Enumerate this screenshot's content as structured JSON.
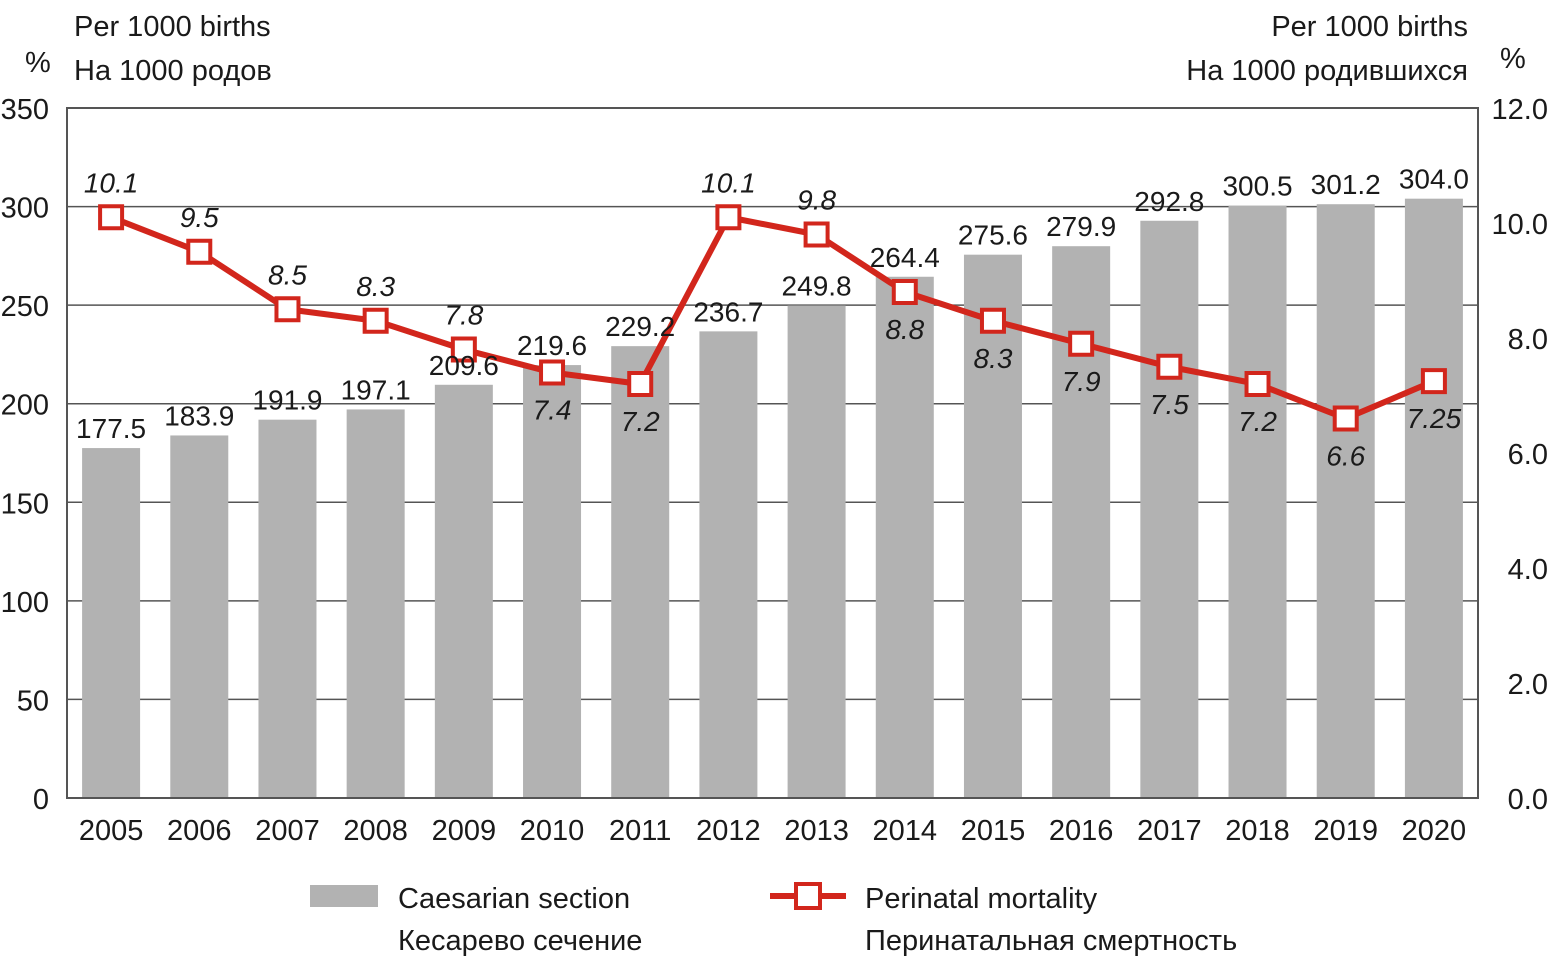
{
  "chart_data": {
    "type": "bar+line",
    "categories": [
      "2005",
      "2006",
      "2007",
      "2008",
      "2009",
      "2010",
      "2011",
      "2012",
      "2013",
      "2014",
      "2015",
      "2016",
      "2017",
      "2018",
      "2019",
      "2020"
    ],
    "series": [
      {
        "name": "Caesarian section / Кесарево сечение",
        "type": "bar",
        "axis": "left",
        "values": [
          177.5,
          183.9,
          191.9,
          197.1,
          209.6,
          219.6,
          229.2,
          236.7,
          249.8,
          264.4,
          275.6,
          279.9,
          292.8,
          300.5,
          301.2,
          304.0
        ],
        "labels": [
          "177.5",
          "183.9",
          "191.9",
          "197.1",
          "209.6",
          "219.6",
          "229.2",
          "236.7",
          "249.8",
          "264.4",
          "275.6",
          "279.9",
          "292.8",
          "300.5",
          "301.2",
          "304.0"
        ],
        "color": "#b2b2b2"
      },
      {
        "name": "Perinatal mortality / Перинатальная смертность",
        "type": "line",
        "axis": "right",
        "values": [
          10.1,
          9.5,
          8.5,
          8.3,
          7.8,
          7.4,
          7.2,
          10.1,
          9.8,
          8.8,
          8.3,
          7.9,
          7.5,
          7.2,
          6.6,
          7.25
        ],
        "labels": [
          "10.1",
          "9.5",
          "8.5",
          "8.3",
          "7.8",
          "7.4",
          "7.2",
          "10.1",
          "9.8",
          "8.8",
          "8.3",
          "7.9",
          "7.5",
          "7.2",
          "6.6",
          "7.25"
        ],
        "label_pos": [
          "above",
          "above",
          "above",
          "above",
          "above",
          "below",
          "below",
          "above",
          "above",
          "below",
          "below",
          "below",
          "below",
          "below",
          "below",
          "below"
        ],
        "color": "#d2261c"
      }
    ],
    "left_axis": {
      "ylim": [
        0,
        350
      ],
      "ticks": [
        "0",
        "50",
        "100",
        "150",
        "200",
        "250",
        "300",
        "350"
      ],
      "unit": "%",
      "title_en": "Per 1000 births",
      "title_ru": "На 1000 родов"
    },
    "right_axis": {
      "ylim": [
        0,
        12
      ],
      "ticks": [
        "0.0",
        "2.0",
        "4.0",
        "6.0",
        "8.0",
        "10.0",
        "12.0"
      ],
      "unit": "%",
      "title_en": "Per 1000 births",
      "title_ru": "На 1000 родившихся"
    },
    "grid": true,
    "legend": {
      "position": "bottom",
      "bar_en": "Caesarian section",
      "bar_ru": "Кесарево сечение",
      "line_en": "Perinatal mortality",
      "line_ru": "Перинатальная смертность"
    }
  }
}
